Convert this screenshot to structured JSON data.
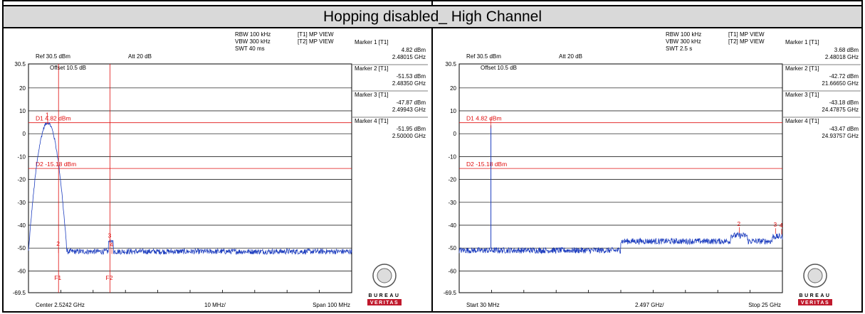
{
  "title": "Hopping disabled_ High Channel",
  "panels": [
    {
      "info": {
        "rbw": "RBW 100 kHz",
        "vbw": "VBW 300 kHz",
        "swt": "SWT 40 ms",
        "t1": "[T1] MP VIEW",
        "t2": "[T2] MP VIEW",
        "ref": "Ref 30.5 dBm",
        "att": "Att  20 dB",
        "offset": "Offset 10.5 dB",
        "ytop": "30.5",
        "ybottom": "-69.5",
        "xleft": "Center 2.5242 GHz",
        "xmid": "10 MHz/",
        "xright": "Span 100 MHz"
      },
      "markers": [
        {
          "label": "Marker 1 [T1]",
          "level": "4.82 dBm",
          "freq": "2.48015 GHz"
        },
        {
          "label": "Marker 2 [T1]",
          "level": "-51.53 dBm",
          "freq": "2.48350 GHz"
        },
        {
          "label": "Marker 3 [T1]",
          "level": "-47.87 dBm",
          "freq": "2.49943 GHz"
        },
        {
          "label": "Marker 4 [T1]",
          "level": "-51.95 dBm",
          "freq": "2.50000 GHz"
        }
      ],
      "d1": "D1 4.82 dBm",
      "d2": "D2 -15.18 dBm",
      "f1": "F1",
      "f2": "F2",
      "logo_text": "BUREAU",
      "logo_sub": "VERITAS"
    },
    {
      "info": {
        "rbw": "RBW 100 kHz",
        "vbw": "VBW 300 kHz",
        "swt": "SWT 2.5 s",
        "t1": "[T1] MP VIEW",
        "t2": "[T2] MP VIEW",
        "ref": "Ref 30.5 dBm",
        "att": "Att  20 dB",
        "offset": "Offset 10.5 dB",
        "ytop": "30.5",
        "ybottom": "-69.5",
        "xleft": "Start 30 MHz",
        "xmid": "2.497 GHz/",
        "xright": "Stop 25 GHz"
      },
      "markers": [
        {
          "label": "Marker 1 [T1]",
          "level": "3.68 dBm",
          "freq": "2.48018 GHz"
        },
        {
          "label": "Marker 2 [T1]",
          "level": "-42.72 dBm",
          "freq": "21.66650 GHz"
        },
        {
          "label": "Marker 3 [T1]",
          "level": "-43.18 dBm",
          "freq": "24.47875 GHz"
        },
        {
          "label": "Marker 4 [T1]",
          "level": "-43.47 dBm",
          "freq": "24.93757 GHz"
        }
      ],
      "d1": "D1 4.82 dBm",
      "d2": "D2 -15.18 dBm",
      "logo_text": "BUREAU",
      "logo_sub": "VERITAS"
    }
  ],
  "chart_data": [
    {
      "type": "line",
      "xunit": "MHz offset from center",
      "xlim": [
        -50,
        50
      ],
      "ylim": [
        -69.5,
        30.5
      ],
      "yticks": [
        20,
        10,
        0,
        -10,
        -20,
        -30,
        -40,
        -50,
        -60
      ],
      "ytick_labels": [
        "20",
        "10",
        "0",
        "-10",
        "-20",
        "-30",
        "-40",
        "-50",
        "-60"
      ],
      "noise_floor": -51.5,
      "signal_peak_offset": -44.05,
      "signal_peak_level": 4.82,
      "display_lines": [
        4.82,
        -15.18
      ],
      "freq_lines": [
        -40.7,
        -24.77
      ],
      "markers": [
        {
          "n": "1",
          "x": -44.05,
          "y": 4.82
        },
        {
          "n": "2",
          "x": -40.7,
          "y": -51.53
        },
        {
          "n": "3",
          "x": -24.77,
          "y": -47.87
        },
        {
          "n": "4",
          "x": -24.2,
          "y": -51.95
        }
      ],
      "colors": {
        "trace": "#1f3fbf",
        "limit": "#e01010"
      }
    },
    {
      "type": "line",
      "xunit": "GHz",
      "xlim": [
        0.03,
        25
      ],
      "ylim": [
        -69.5,
        30.5
      ],
      "yticks": [
        20,
        10,
        0,
        -10,
        -20,
        -30,
        -40,
        -50,
        -60
      ],
      "ytick_labels": [
        "20",
        "10",
        "0",
        "-10",
        "-20",
        "-30",
        "-40",
        "-50",
        "-60"
      ],
      "noise_segments": [
        {
          "x": [
            0.03,
            12.5
          ],
          "y": -51
        },
        {
          "x": [
            12.5,
            25
          ],
          "y": -47
        }
      ],
      "spike": {
        "x": 2.48,
        "y": 3.68
      },
      "display_lines": [
        4.82,
        -15.18
      ],
      "markers": [
        {
          "n": "2",
          "x": 21.6665,
          "y": -42.72
        },
        {
          "n": "3",
          "x": 24.47875,
          "y": -43.18
        },
        {
          "n": "4",
          "x": 24.93757,
          "y": -43.47
        }
      ],
      "colors": {
        "trace": "#1f3fbf",
        "limit": "#e01010"
      }
    }
  ]
}
